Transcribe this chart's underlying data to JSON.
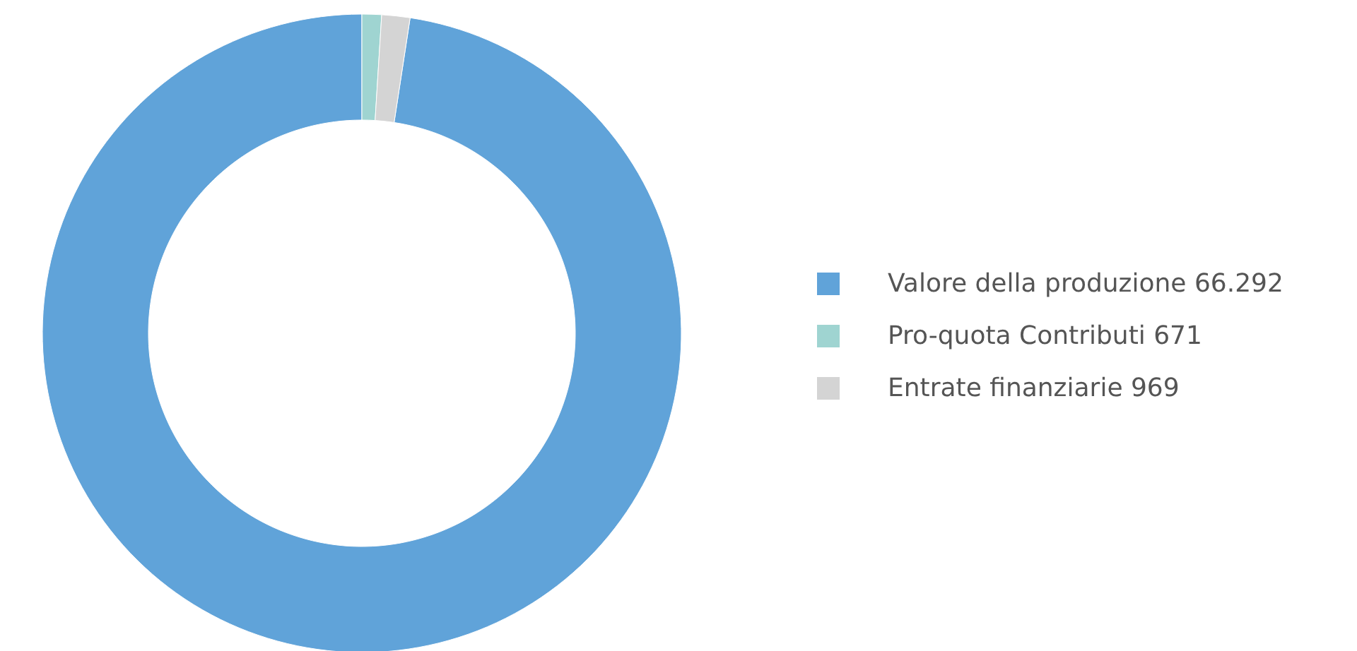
{
  "chart_data": {
    "type": "donut",
    "categories": [
      "Valore della produzione",
      "Pro-quota Contributi",
      "Entrate finanziarie"
    ],
    "values": [
      66292,
      671,
      969
    ],
    "value_labels": [
      "66.292",
      "671",
      "969"
    ],
    "colors": [
      "#60a3d9",
      "#9fd4d1",
      "#d4d4d4"
    ],
    "legend": "right"
  }
}
